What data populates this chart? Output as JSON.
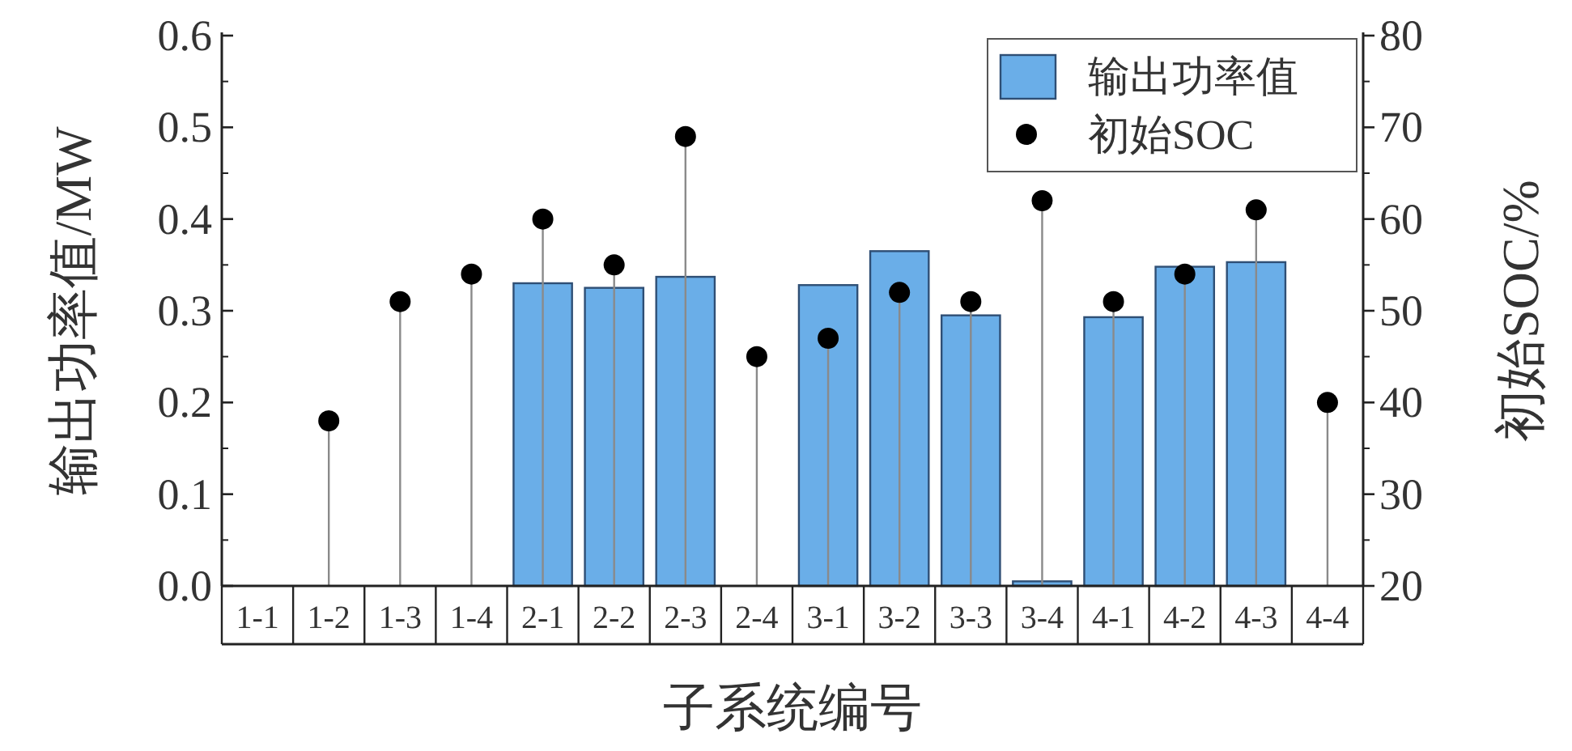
{
  "chart_data": {
    "type": "bar",
    "xlabel": "子系统编号",
    "ylabel": "输出功率值/MW",
    "y2label": "初始SOC/%",
    "categories": [
      "1-1",
      "1-2",
      "1-3",
      "1-4",
      "2-1",
      "2-2",
      "2-3",
      "2-4",
      "3-1",
      "3-2",
      "3-3",
      "3-4",
      "4-1",
      "4-2",
      "4-3",
      "4-4"
    ],
    "series": [
      {
        "name": "输出功率值",
        "color": "#6aaee8",
        "values": [
          0,
          0,
          0,
          0,
          0.33,
          0.325,
          0.337,
          0,
          0.328,
          0.365,
          0.295,
          0.005,
          0.293,
          0.348,
          0.353,
          0
        ]
      },
      {
        "name": "初始SOC",
        "type": "lollipop",
        "axis": "y2",
        "color": "#000000",
        "marker": "circle",
        "values": [
          null,
          38,
          51,
          54,
          60,
          55,
          69,
          45,
          47,
          52,
          51,
          62,
          51,
          54,
          61,
          40
        ]
      }
    ],
    "ylim": [
      0,
      0.6
    ],
    "yticks": [
      {
        "value": 0,
        "label": "0.0"
      },
      0.1,
      0.2,
      0.3,
      0.4,
      0.5,
      0.6
    ],
    "y2lim": [
      20,
      80
    ],
    "y2ticks": [
      20,
      30,
      40,
      50,
      60,
      70,
      80
    ],
    "legend": "top right"
  }
}
